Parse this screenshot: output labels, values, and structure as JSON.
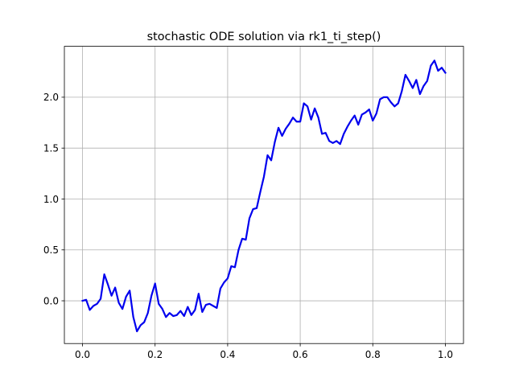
{
  "chart_data": {
    "type": "line",
    "title": "stochastic ODE solution via rk1_ti_step()",
    "xlabel": "",
    "ylabel": "",
    "xlim": [
      -0.05,
      1.05
    ],
    "ylim": [
      -0.42,
      2.5
    ],
    "x_ticks": [
      0.0,
      0.2,
      0.4,
      0.6,
      0.8,
      1.0
    ],
    "x_tick_labels": [
      "0.0",
      "0.2",
      "0.4",
      "0.6",
      "0.8",
      "1.0"
    ],
    "y_ticks": [
      0.0,
      0.5,
      1.0,
      1.5,
      2.0
    ],
    "y_tick_labels": [
      "0.0",
      "0.5",
      "1.0",
      "1.5",
      "2.0"
    ],
    "grid": true,
    "series": [
      {
        "color": "#0000ee",
        "x": [
          0.0,
          0.01,
          0.02,
          0.03,
          0.04,
          0.05,
          0.06,
          0.07,
          0.08,
          0.09,
          0.1,
          0.11,
          0.12,
          0.13,
          0.14,
          0.15,
          0.16,
          0.17,
          0.18,
          0.19,
          0.2,
          0.21,
          0.22,
          0.23,
          0.24,
          0.25,
          0.26,
          0.27,
          0.28,
          0.29,
          0.3,
          0.31,
          0.32,
          0.33,
          0.34,
          0.35,
          0.36,
          0.37,
          0.38,
          0.39,
          0.4,
          0.41,
          0.42,
          0.43,
          0.44,
          0.45,
          0.46,
          0.47,
          0.48,
          0.49,
          0.5,
          0.51,
          0.52,
          0.53,
          0.54,
          0.55,
          0.56,
          0.57,
          0.58,
          0.59,
          0.6,
          0.61,
          0.62,
          0.63,
          0.64,
          0.65,
          0.66,
          0.67,
          0.68,
          0.69,
          0.7,
          0.71,
          0.72,
          0.73,
          0.74,
          0.75,
          0.76,
          0.77,
          0.78,
          0.79,
          0.8,
          0.81,
          0.82,
          0.83,
          0.84,
          0.85,
          0.86,
          0.87,
          0.88,
          0.89,
          0.9,
          0.91,
          0.92,
          0.93,
          0.94,
          0.95,
          0.96,
          0.97,
          0.98,
          0.99,
          1.0
        ],
        "y": [
          0.0,
          0.01,
          -0.09,
          -0.05,
          -0.03,
          0.02,
          0.26,
          0.16,
          0.05,
          0.13,
          -0.02,
          -0.08,
          0.04,
          0.1,
          -0.16,
          -0.3,
          -0.24,
          -0.21,
          -0.12,
          0.05,
          0.17,
          -0.03,
          -0.08,
          -0.16,
          -0.12,
          -0.15,
          -0.14,
          -0.1,
          -0.15,
          -0.06,
          -0.14,
          -0.09,
          0.07,
          -0.11,
          -0.04,
          -0.03,
          -0.05,
          -0.07,
          0.12,
          0.18,
          0.22,
          0.34,
          0.33,
          0.5,
          0.61,
          0.6,
          0.81,
          0.9,
          0.91,
          1.07,
          1.22,
          1.43,
          1.38,
          1.56,
          1.7,
          1.62,
          1.69,
          1.74,
          1.8,
          1.76,
          1.76,
          1.94,
          1.91,
          1.78,
          1.89,
          1.8,
          1.64,
          1.65,
          1.57,
          1.55,
          1.57,
          1.54,
          1.64,
          1.71,
          1.77,
          1.82,
          1.73,
          1.83,
          1.85,
          1.88,
          1.77,
          1.84,
          1.98,
          2.0,
          2.0,
          1.95,
          1.91,
          1.94,
          2.06,
          2.22,
          2.16,
          2.09,
          2.17,
          2.03,
          2.11,
          2.16,
          2.31,
          2.36,
          2.26,
          2.29,
          2.24
        ]
      }
    ]
  }
}
